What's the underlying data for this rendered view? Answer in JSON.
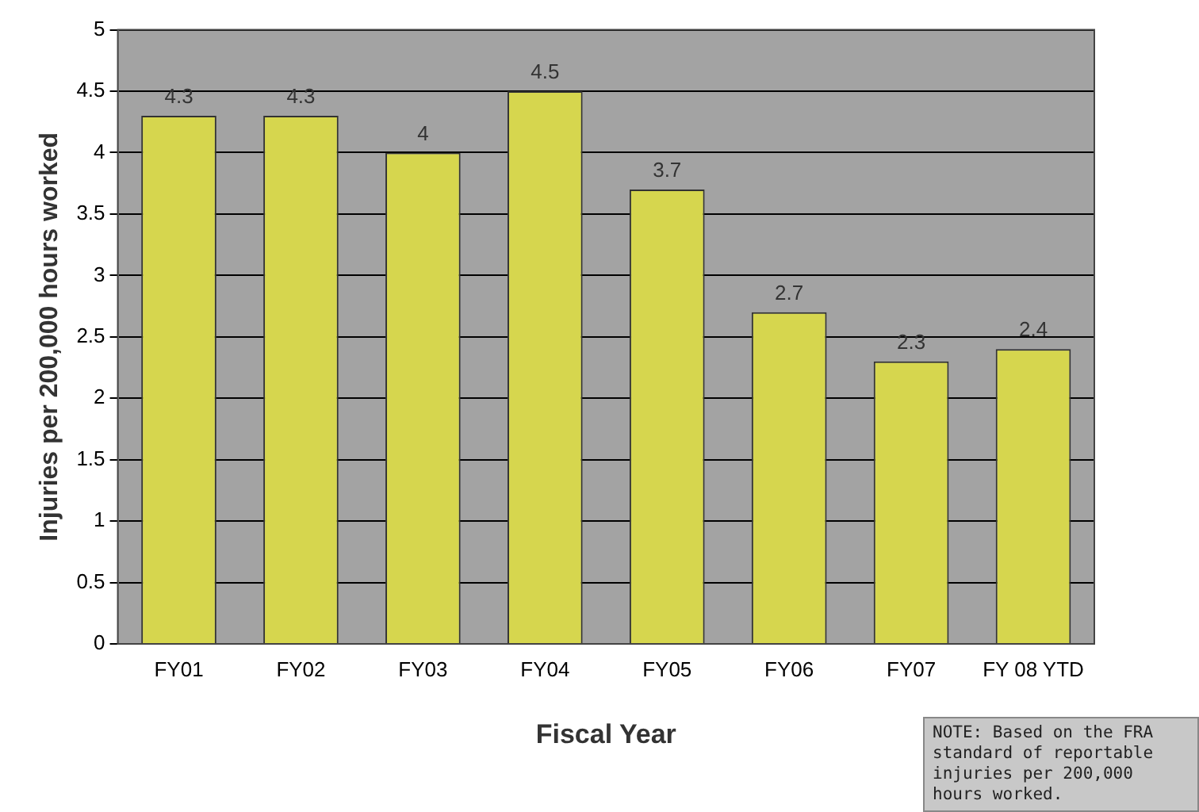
{
  "chart_data": {
    "type": "bar",
    "xlabel": "Fiscal Year",
    "ylabel": "Injuries per 200,000 hours worked",
    "categories": [
      "FY01",
      "FY02",
      "FY03",
      "FY04",
      "FY05",
      "FY06",
      "FY07",
      "FY 08 YTD"
    ],
    "values": [
      4.3,
      4.3,
      4,
      4.5,
      3.7,
      2.7,
      2.3,
      2.4
    ],
    "color": "#d6d64e",
    "ylim": [
      0,
      5
    ],
    "yticks": [
      0,
      0.5,
      1,
      1.5,
      2,
      2.5,
      3,
      3.5,
      4,
      4.5,
      5
    ],
    "grid": "y",
    "data_labels": true,
    "legend": false,
    "annotations": [
      "NOTE: Based on the FRA standard of reportable injuries per 200,000 hours worked."
    ]
  }
}
